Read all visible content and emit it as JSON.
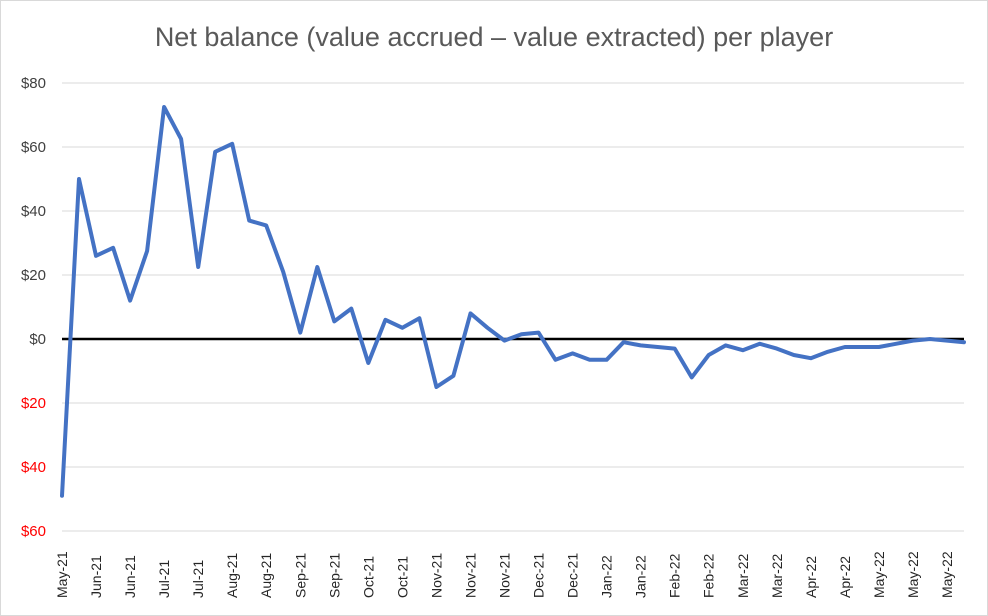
{
  "chart_data": {
    "type": "line",
    "title": "Net balance (value accrued – value extracted) per player",
    "xlabel": "",
    "ylabel": "",
    "ylim": [
      -60,
      80
    ],
    "grid": true,
    "colors": {
      "line": "#4472c4",
      "zero_line": "#000000",
      "grid": "#d9d9d9",
      "negative_tick": "#ff0000",
      "positive_tick": "#404040"
    },
    "y_ticks": [
      {
        "value": 80,
        "label": "$80"
      },
      {
        "value": 60,
        "label": "$60"
      },
      {
        "value": 40,
        "label": "$40"
      },
      {
        "value": 20,
        "label": "$20"
      },
      {
        "value": 0,
        "label": "$0"
      },
      {
        "value": -20,
        "label": "$20"
      },
      {
        "value": -40,
        "label": "$40"
      },
      {
        "value": -60,
        "label": "$60"
      }
    ],
    "x_tick_labels": [
      "May-21",
      "Jun-21",
      "Jun-21",
      "Jul-21",
      "Jul-21",
      "Aug-21",
      "Aug-21",
      "Sep-21",
      "Sep-21",
      "Oct-21",
      "Oct-21",
      "Nov-21",
      "Nov-21",
      "Nov-21",
      "Dec-21",
      "Dec-21",
      "Jan-22",
      "Jan-22",
      "Feb-22",
      "Feb-22",
      "Mar-22",
      "Mar-22",
      "Apr-22",
      "Apr-22",
      "May-22",
      "May-22",
      "May-22"
    ],
    "series": [
      {
        "values": [
          -49,
          50,
          26,
          28.5,
          12,
          27.5,
          72.5,
          62.5,
          22.5,
          58.5,
          61,
          37,
          35.5,
          21,
          2,
          22.5,
          5.5,
          9.5,
          -7.5,
          6,
          3.5,
          6.5,
          -15,
          -11.5,
          8,
          3.5,
          -0.5,
          1.5,
          2,
          -6.5,
          -4.5,
          -6.5,
          -6.5,
          -1,
          -2,
          -2.5,
          -3,
          -12,
          -5,
          -2,
          -3.5,
          -1.5,
          -3,
          -5,
          -6,
          -4,
          -2.5,
          -2.5,
          -2.5,
          -1.5,
          -0.5,
          0,
          -0.5,
          -1
        ]
      }
    ]
  }
}
